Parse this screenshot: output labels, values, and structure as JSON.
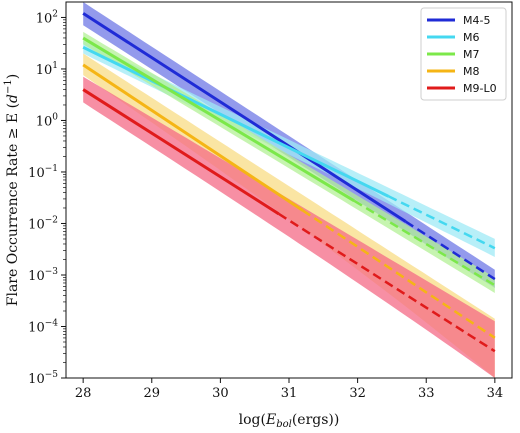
{
  "chart_data": {
    "type": "line",
    "xlabel": "log(E_bol(ergs))",
    "ylabel": "Flare Occurrence Rate ≥ E (d⁻¹)",
    "xlim": [
      27.75,
      34.25
    ],
    "ylim_log10": [
      -5,
      2.3
    ],
    "yscale": "log",
    "x_ticks": [
      28,
      29,
      30,
      31,
      32,
      33,
      34
    ],
    "x_tick_labels": [
      "28",
      "29",
      "30",
      "31",
      "32",
      "33",
      "34"
    ],
    "y_tick_exponents": [
      2,
      1,
      0,
      -1,
      -2,
      -3,
      -4,
      -5
    ],
    "legend_position": "top-right",
    "series": [
      {
        "name": "M4-5",
        "color": "#1f2bd6",
        "band_color": "#6f78e6",
        "x_start": 28,
        "x_end": 34,
        "x_dash_start": 32.7,
        "log_y_start": 2.08,
        "log_y_end": -3.08,
        "band_start": [
          1.85,
          2.3
        ],
        "band_end": [
          -3.25,
          -2.9
        ]
      },
      {
        "name": "M6",
        "color": "#44d8f0",
        "band_color": "#9fe9f6",
        "x_start": 28,
        "x_end": 34,
        "x_dash_start": 32.45,
        "log_y_start": 1.42,
        "log_y_end": -2.48,
        "band_start": [
          1.3,
          1.55
        ],
        "band_end": [
          -2.65,
          -2.3
        ]
      },
      {
        "name": "M7",
        "color": "#7ce84a",
        "band_color": "#b3f095",
        "x_start": 28,
        "x_end": 34,
        "x_dash_start": 31.95,
        "log_y_start": 1.6,
        "log_y_end": -3.2,
        "band_start": [
          1.48,
          1.72
        ],
        "band_end": [
          -3.35,
          -3.05
        ]
      },
      {
        "name": "M8",
        "color": "#f5b515",
        "band_color": "#f8dc84",
        "x_start": 28,
        "x_end": 34,
        "x_dash_start": 31.2,
        "log_y_start": 1.08,
        "log_y_end": -4.22,
        "band_start": [
          0.88,
          1.3
        ],
        "band_end": [
          -5.0,
          -3.85
        ]
      },
      {
        "name": "M9-L0",
        "color": "#e01b1b",
        "band_color": "#f46a86",
        "x_start": 28,
        "x_end": 34,
        "x_dash_start": 30.85,
        "log_y_start": 0.6,
        "log_y_end": -4.48,
        "band_start": [
          0.35,
          0.85
        ],
        "band_end": [
          -5.0,
          -3.9
        ]
      }
    ]
  }
}
